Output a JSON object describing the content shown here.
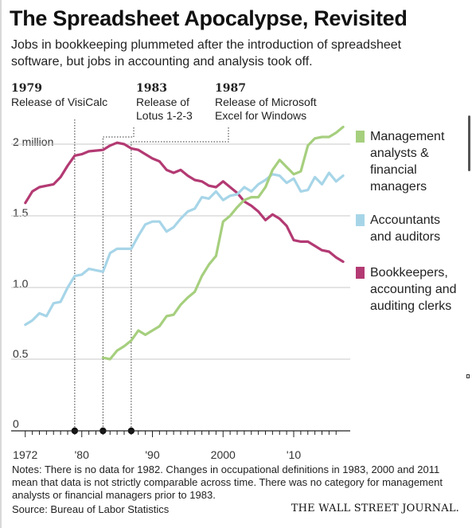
{
  "title": "The Spreadsheet Apocalypse, Revisited",
  "subtitle": "Jobs in bookkeeping plummeted after the introduction of spreadsheet software, but jobs in accounting and analysis took off.",
  "events": [
    {
      "year": "1979",
      "label": "Release of VisiCalc",
      "x": 1979
    },
    {
      "year": "1983",
      "label": "Release of\nLotus 1-2-3",
      "x": 1983
    },
    {
      "year": "1987",
      "label": "Release of Microsoft\nExcel for Windows",
      "x": 1987
    }
  ],
  "legend": [
    {
      "label": "Management\nanalysts &\nfinancial\nmanagers",
      "color": "#a6cf7e"
    },
    {
      "label": "Accountants\nand auditors",
      "color": "#a7d5e8"
    },
    {
      "label": "Bookkeepers,\naccounting and\nauditing clerks",
      "color": "#b33a73"
    }
  ],
  "notes": "Notes: There is no data for 1982. Changes in occupational definitions in 1983, 2000 and 2011 mean that data is not strictly comparable across time. There was no category for management analysts or financial managers prior to 1983.",
  "source": "Source: Bureau of Labor Statistics",
  "publisher": "THE WALL STREET JOURNAL.",
  "chart_data": {
    "type": "line",
    "title": "The Spreadsheet Apocalypse, Revisited",
    "ylim": [
      0,
      2.1
    ],
    "xlim": [
      1972,
      2016
    ],
    "y_ticks": [
      {
        "value": 0,
        "label": "0"
      },
      {
        "value": 0.5,
        "label": "0.5"
      },
      {
        "value": 1.0,
        "label": "1.0"
      },
      {
        "value": 1.5,
        "label": "1.5"
      },
      {
        "value": 2.0,
        "label": "2 million"
      }
    ],
    "x_ticks": [
      {
        "value": 1972,
        "label": "1972"
      },
      {
        "value": 1980,
        "label": "'80"
      },
      {
        "value": 1990,
        "label": "'90"
      },
      {
        "value": 2000,
        "label": "2000"
      },
      {
        "value": 2010,
        "label": "'10"
      }
    ],
    "grid": true,
    "legend_position": "right",
    "series": [
      {
        "name": "Bookkeepers, accounting and auditing clerks",
        "color": "#b33a73",
        "points": [
          [
            1972,
            1.59
          ],
          [
            1973,
            1.67
          ],
          [
            1974,
            1.7
          ],
          [
            1975,
            1.71
          ],
          [
            1976,
            1.72
          ],
          [
            1977,
            1.77
          ],
          [
            1978,
            1.85
          ],
          [
            1979,
            1.92
          ],
          [
            1980,
            1.93
          ],
          [
            1981,
            1.95
          ],
          [
            1983,
            1.96
          ],
          [
            1984,
            1.99
          ],
          [
            1985,
            2.01
          ],
          [
            1986,
            2.0
          ],
          [
            1987,
            1.97
          ],
          [
            1988,
            1.96
          ],
          [
            1989,
            1.93
          ],
          [
            1990,
            1.9
          ],
          [
            1991,
            1.88
          ],
          [
            1992,
            1.82
          ],
          [
            1993,
            1.8
          ],
          [
            1994,
            1.82
          ],
          [
            1995,
            1.78
          ],
          [
            1996,
            1.75
          ],
          [
            1997,
            1.74
          ],
          [
            1998,
            1.71
          ],
          [
            1999,
            1.7
          ],
          [
            2000,
            1.74
          ],
          [
            2001,
            1.7
          ],
          [
            2002,
            1.66
          ],
          [
            2003,
            1.6
          ],
          [
            2004,
            1.57
          ],
          [
            2005,
            1.53
          ],
          [
            2006,
            1.47
          ],
          [
            2007,
            1.51
          ],
          [
            2008,
            1.48
          ],
          [
            2009,
            1.43
          ],
          [
            2010,
            1.33
          ],
          [
            2011,
            1.32
          ],
          [
            2012,
            1.32
          ],
          [
            2013,
            1.29
          ],
          [
            2014,
            1.26
          ],
          [
            2015,
            1.25
          ],
          [
            2016,
            1.21
          ],
          [
            2017,
            1.18
          ]
        ]
      },
      {
        "name": "Accountants and auditors",
        "color": "#a7d5e8",
        "points": [
          [
            1972,
            0.74
          ],
          [
            1973,
            0.77
          ],
          [
            1974,
            0.82
          ],
          [
            1975,
            0.8
          ],
          [
            1976,
            0.89
          ],
          [
            1977,
            0.9
          ],
          [
            1978,
            1.0
          ],
          [
            1979,
            1.08
          ],
          [
            1980,
            1.09
          ],
          [
            1981,
            1.13
          ],
          [
            1983,
            1.11
          ],
          [
            1984,
            1.24
          ],
          [
            1985,
            1.27
          ],
          [
            1986,
            1.27
          ],
          [
            1987,
            1.27
          ],
          [
            1988,
            1.36
          ],
          [
            1989,
            1.44
          ],
          [
            1990,
            1.46
          ],
          [
            1991,
            1.46
          ],
          [
            1992,
            1.39
          ],
          [
            1993,
            1.42
          ],
          [
            1994,
            1.48
          ],
          [
            1995,
            1.53
          ],
          [
            1996,
            1.55
          ],
          [
            1997,
            1.63
          ],
          [
            1998,
            1.62
          ],
          [
            1999,
            1.67
          ],
          [
            2000,
            1.61
          ],
          [
            2001,
            1.64
          ],
          [
            2002,
            1.65
          ],
          [
            2003,
            1.7
          ],
          [
            2004,
            1.67
          ],
          [
            2005,
            1.72
          ],
          [
            2006,
            1.75
          ],
          [
            2007,
            1.79
          ],
          [
            2008,
            1.78
          ],
          [
            2009,
            1.73
          ],
          [
            2010,
            1.76
          ],
          [
            2011,
            1.67
          ],
          [
            2012,
            1.68
          ],
          [
            2013,
            1.77
          ],
          [
            2014,
            1.72
          ],
          [
            2015,
            1.8
          ],
          [
            2016,
            1.74
          ],
          [
            2017,
            1.78
          ]
        ]
      },
      {
        "name": "Management analysts & financial managers",
        "color": "#a6cf7e",
        "points": [
          [
            1983,
            0.51
          ],
          [
            1984,
            0.5
          ],
          [
            1985,
            0.56
          ],
          [
            1986,
            0.59
          ],
          [
            1987,
            0.63
          ],
          [
            1988,
            0.7
          ],
          [
            1989,
            0.67
          ],
          [
            1990,
            0.7
          ],
          [
            1991,
            0.73
          ],
          [
            1992,
            0.8
          ],
          [
            1993,
            0.81
          ],
          [
            1994,
            0.88
          ],
          [
            1995,
            0.93
          ],
          [
            1996,
            0.97
          ],
          [
            1997,
            1.08
          ],
          [
            1998,
            1.16
          ],
          [
            1999,
            1.22
          ],
          [
            2000,
            1.46
          ],
          [
            2001,
            1.5
          ],
          [
            2002,
            1.56
          ],
          [
            2003,
            1.61
          ],
          [
            2004,
            1.63
          ],
          [
            2005,
            1.63
          ],
          [
            2006,
            1.7
          ],
          [
            2007,
            1.82
          ],
          [
            2008,
            1.89
          ],
          [
            2009,
            1.84
          ],
          [
            2010,
            1.79
          ],
          [
            2011,
            1.81
          ],
          [
            2012,
            1.99
          ],
          [
            2013,
            2.04
          ],
          [
            2014,
            2.05
          ],
          [
            2015,
            2.05
          ],
          [
            2016,
            2.08
          ],
          [
            2017,
            2.12
          ]
        ]
      }
    ]
  }
}
